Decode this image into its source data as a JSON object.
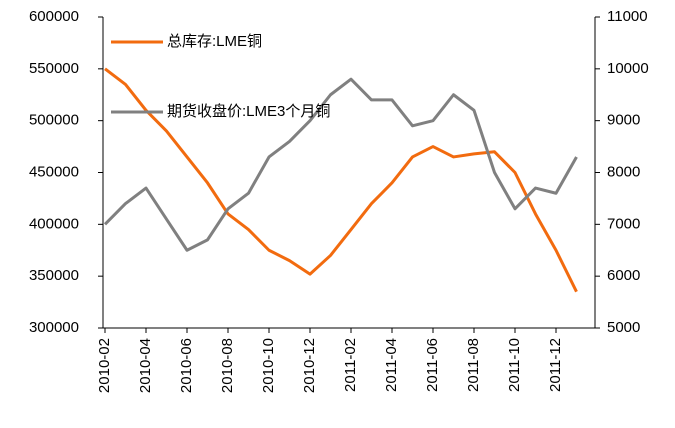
{
  "chart_data": {
    "type": "line",
    "categories": [
      "2010-02",
      null,
      "2010-04",
      null,
      "2010-06",
      null,
      "2010-08",
      null,
      "2010-10",
      null,
      "2010-12",
      null,
      "2011-02",
      null,
      "2011-04",
      null,
      "2011-06",
      null,
      "2011-08",
      null,
      "2011-10",
      null,
      "2011-12",
      null
    ],
    "series": [
      {
        "name": "总库存:LME铜",
        "color": "#f26b0f",
        "axis": "y",
        "values": [
          550000,
          535000,
          510000,
          490000,
          465000,
          440000,
          410000,
          395000,
          375000,
          365000,
          352000,
          370000,
          395000,
          420000,
          440000,
          465000,
          475000,
          465000,
          468000,
          470000,
          450000,
          410000,
          375000,
          335000
        ]
      },
      {
        "name": "期货收盘价:LME3个月铜",
        "color": "#808080",
        "axis": "y2",
        "values": [
          7000,
          7400,
          7700,
          7100,
          6500,
          6700,
          7300,
          7600,
          8300,
          8600,
          9000,
          9500,
          9800,
          9400,
          9400,
          8900,
          9000,
          9500,
          9200,
          8000,
          7300,
          7700,
          7600,
          8300
        ]
      }
    ],
    "ylim": [
      300000,
      600000
    ],
    "yticks": [
      300000,
      350000,
      400000,
      450000,
      500000,
      550000,
      600000
    ],
    "y2lim": [
      5000,
      11000
    ],
    "y2ticks": [
      5000,
      6000,
      7000,
      8000,
      9000,
      10000,
      11000
    ],
    "legend": "upper left"
  }
}
